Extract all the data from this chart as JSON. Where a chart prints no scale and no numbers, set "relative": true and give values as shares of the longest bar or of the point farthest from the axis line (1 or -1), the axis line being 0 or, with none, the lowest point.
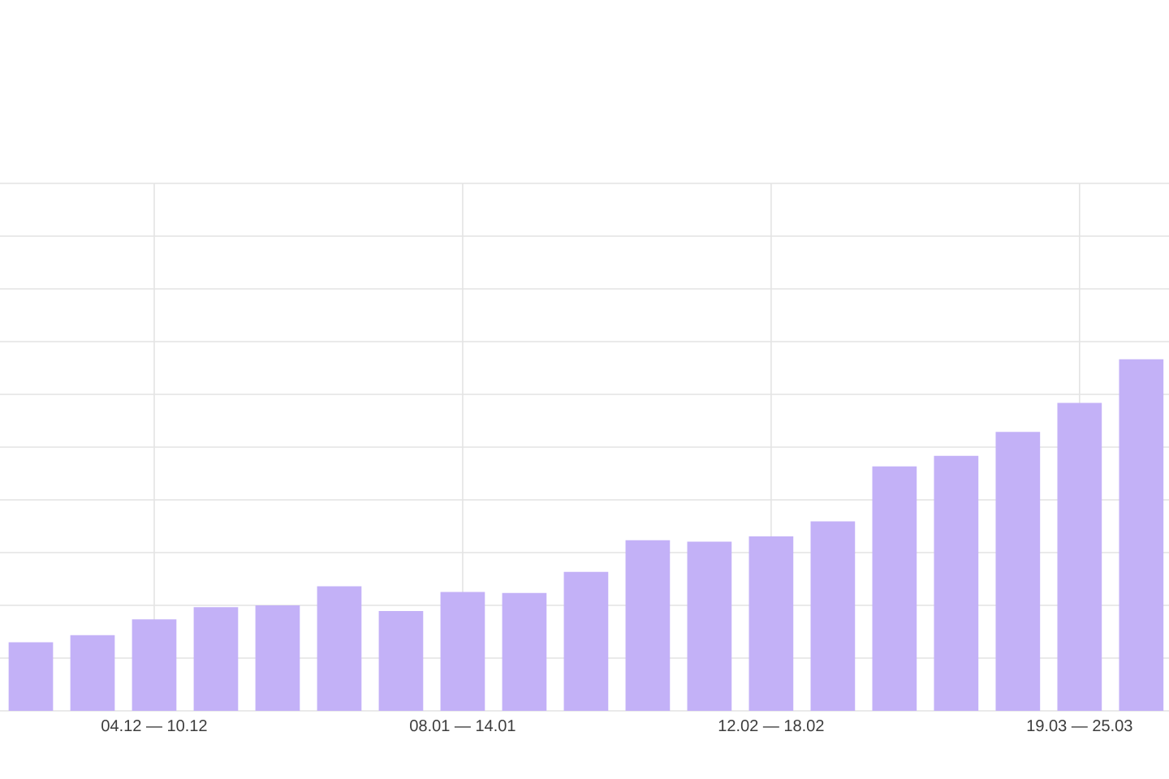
{
  "chart_data": {
    "type": "bar",
    "categories": [
      null,
      null,
      "04.12 — 10.12",
      null,
      null,
      null,
      null,
      "08.01 — 14.01",
      null,
      null,
      null,
      null,
      "12.02 — 18.02",
      null,
      null,
      null,
      null,
      "19.03 — 25.03",
      null
    ],
    "values": [
      0.195,
      0.215,
      0.26,
      0.295,
      0.3,
      0.354,
      0.284,
      0.338,
      0.335,
      0.395,
      0.485,
      0.481,
      0.496,
      0.539,
      0.695,
      0.725,
      0.793,
      0.876,
      1
    ],
    "color": "#c3b1f7",
    "relative": true,
    "grid": true
  }
}
